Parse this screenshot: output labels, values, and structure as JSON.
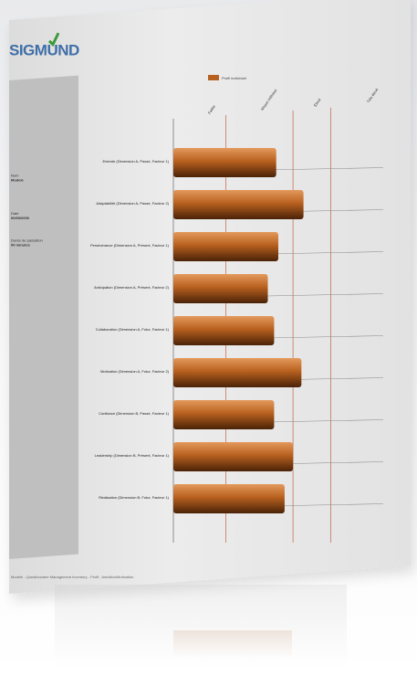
{
  "brand": {
    "logo_text": "SIGMUND",
    "accent": "#3f6fa8"
  },
  "info": {
    "label1": "Nom",
    "value1": "Modèle",
    "label2": "Date",
    "value2": "00/00/0000",
    "label3": "Durée de passation",
    "value3": "00 minutes"
  },
  "footer": "Modèle - Questionnaire Management Inventory - Profil : Ambition/Motivation",
  "chart_data": {
    "type": "bar",
    "orientation": "horizontal",
    "legend": {
      "label": "Profil individuel",
      "position": "top",
      "color": "#b8601f"
    },
    "axis_labels": [
      "Faible",
      "Moyen inférieur",
      "Élevé",
      "Très élevé"
    ],
    "categories": [
      "Entente (Dimension A, Passé, Facteur 1)",
      "Adaptabilité (Dimension A, Passé, Facteur 2)",
      "Persévérance (Dimension A, Présent, Facteur 1)",
      "Anticipation (Dimension A, Présent, Facteur 2)",
      "Collaboration (Dimension A, Futur, Facteur 1)",
      "Motivation (Dimension A, Futur, Facteur 2)",
      "Confiance (Dimension B, Passé, Facteur 1)",
      "Leadership (Dimension B, Présent, Facteur 1)",
      "Réalisation (Dimension B, Futur, Facteur 1)"
    ],
    "values": [
      49,
      62,
      50,
      45,
      48,
      61,
      48,
      57,
      53
    ],
    "xlim": [
      0,
      100
    ],
    "reference_lines": [
      25,
      57,
      75
    ],
    "bar_color": "#b8601f"
  }
}
